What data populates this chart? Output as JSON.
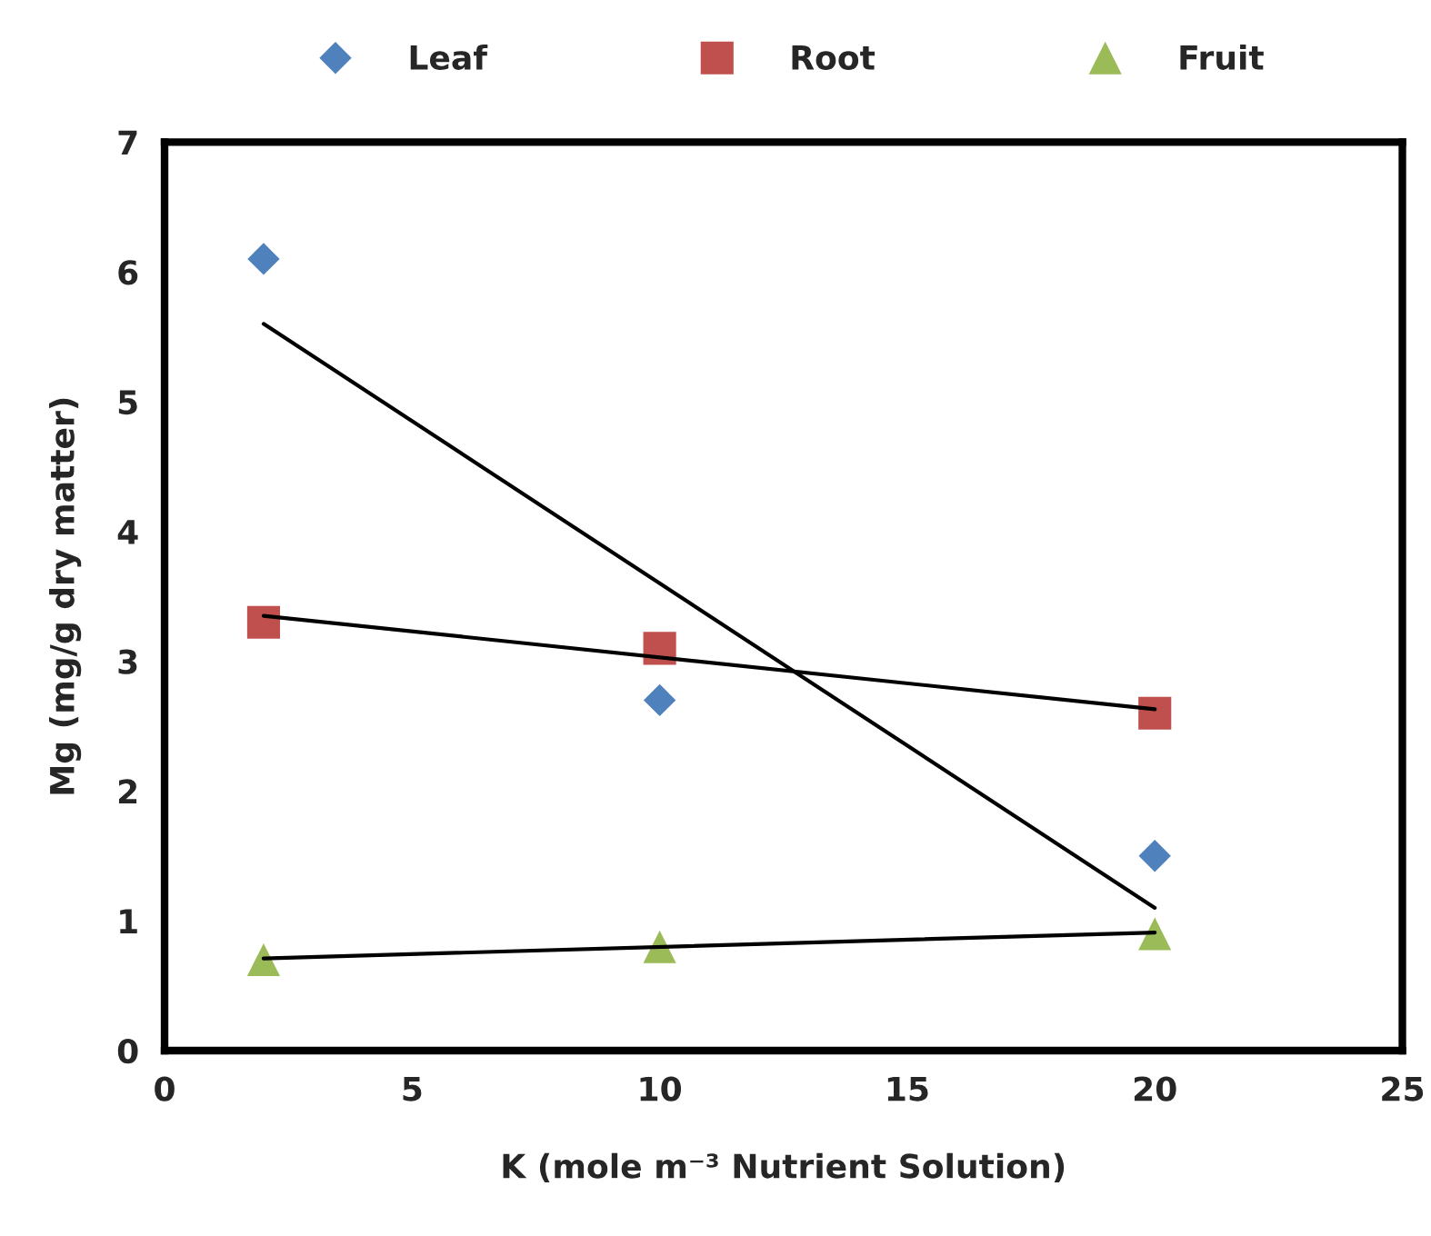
{
  "chart_data": {
    "type": "scatter",
    "xlabel": "K (mole m⁻³ Nutrient Solution)",
    "ylabel": "Mg (mg/g dry matter)",
    "xlim": [
      0,
      25
    ],
    "xticks": [
      0,
      5,
      10,
      15,
      20,
      25
    ],
    "ylim": [
      0,
      7
    ],
    "yticks": [
      0,
      1,
      2,
      3,
      4,
      5,
      6,
      7
    ],
    "grid": false,
    "legend": "top",
    "series": [
      {
        "name": "Leaf",
        "color": "#4f81bd",
        "marker": "diamond",
        "x": [
          2,
          10,
          20
        ],
        "values": [
          6.1,
          2.7,
          1.5
        ]
      },
      {
        "name": "Root",
        "color": "#c0504d",
        "marker": "square",
        "x": [
          2,
          10,
          20
        ],
        "values": [
          3.3,
          3.1,
          2.6
        ]
      },
      {
        "name": "Fruit",
        "color": "#9bbb59",
        "marker": "triangle",
        "x": [
          2,
          10,
          20
        ],
        "values": [
          0.7,
          0.8,
          0.9
        ]
      },
      {
        "type": "line",
        "color": "#000000",
        "marker": "none",
        "x": [
          2,
          20
        ],
        "values": [
          5.6,
          1.1
        ]
      },
      {
        "type": "line",
        "color": "#000000",
        "marker": "none",
        "x": [
          2,
          20
        ],
        "values": [
          3.35,
          2.63
        ]
      },
      {
        "type": "line",
        "color": "#000000",
        "marker": "none",
        "x": [
          2,
          20
        ],
        "values": [
          0.71,
          0.91
        ]
      }
    ]
  }
}
